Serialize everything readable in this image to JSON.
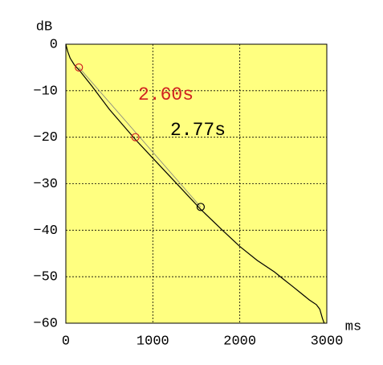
{
  "chart_data": {
    "type": "line",
    "x_label": "ms",
    "y_label": "dB",
    "xlim": [
      0,
      3000
    ],
    "ylim": [
      -60,
      0
    ],
    "xticks": [
      0,
      1000,
      2000,
      3000
    ],
    "yticks": [
      0,
      {
        "value": -10,
        "label": "−10"
      },
      {
        "value": -20,
        "label": "−20"
      },
      {
        "value": -30,
        "label": "−30"
      },
      {
        "value": -40,
        "label": "−40"
      },
      {
        "value": -50,
        "label": "−50"
      },
      {
        "value": -60,
        "label": "−60"
      }
    ],
    "grid": true,
    "background": "#ffff80",
    "series": [
      {
        "color": "#000000",
        "x": [
          0,
          20,
          50,
          100,
          150,
          300,
          500,
          800,
          1000,
          1200,
          1550,
          1800,
          2000,
          2200,
          2400,
          2500,
          2600,
          2700,
          2800,
          2880,
          2920,
          2950,
          2970
        ],
        "values": [
          0,
          -1.5,
          -3,
          -4.5,
          -5.5,
          -9,
          -14,
          -20.5,
          -24.5,
          -28.5,
          -35.5,
          -40,
          -43.5,
          -46.5,
          -49,
          -50.5,
          -52,
          -53.5,
          -55,
          -56,
          -57,
          -59,
          -60
        ]
      },
      {
        "color": "#808080",
        "x": [
          150,
          1550
        ],
        "values": [
          -5,
          -35
        ]
      }
    ],
    "markers": [
      {
        "x": 150,
        "y": -5,
        "color": "#d02020"
      },
      {
        "x": 800,
        "y": -20,
        "color": "#d02020"
      },
      {
        "x": 1550,
        "y": -35,
        "color": "#000000"
      }
    ],
    "annotations": [
      {
        "text": "2.60s",
        "color": "#d02020"
      },
      {
        "text": "2.77s",
        "color": "#000000"
      }
    ]
  }
}
